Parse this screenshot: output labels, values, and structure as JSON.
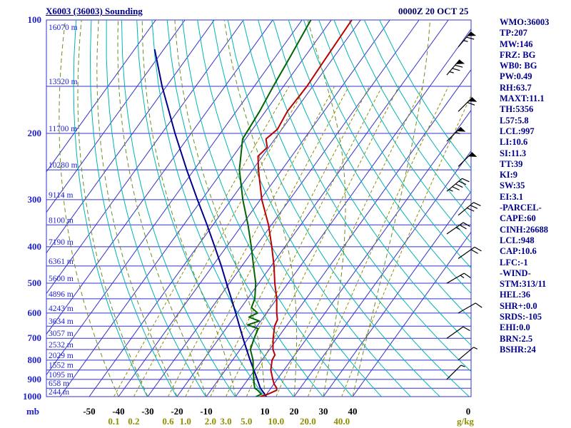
{
  "header": {
    "title": "X6003 (36003) Sounding",
    "timestamp": "0000Z 20 OCT 25"
  },
  "stats_panel": {
    "lines": [
      "WMO:36003",
      "TP:207",
      "MW:146",
      "FRZ: BG",
      "WB0: BG",
      "PW:0.49",
      "RH:63.7",
      "MAXT:11.1",
      "TH:5356",
      "L57:5.8",
      "LCL:997",
      "LI:10.6",
      "SI:11.3",
      "TT:39",
      "KI:9",
      "SW:35",
      "EI:3.1",
      "-PARCEL-",
      "CAPE:60",
      "CINH:26688",
      "LCL:948",
      "CAP:10.6",
      "LFC:-1",
      "-WIND-",
      "STM:313/11",
      "HEL:36",
      "SHR+:0.0",
      "SRDS:-105",
      "EHI:0.0",
      "BRN:2.5",
      "BSHR:24"
    ]
  },
  "colors": {
    "grid_blue": "#3333cc",
    "dry_adiabat_cyan": "#00b4b4",
    "mixing_olive": "#8f8f00",
    "moist_olive_green": "#6b8e23",
    "temperature_red": "#bb0000",
    "dewpoint_green": "#006400",
    "parcel_navy": "#00008b",
    "axis_text_blue": "#2222cc",
    "text_navy": "#00008b",
    "barb_black": "#000000"
  },
  "chart_data": {
    "type": "skewt_log_p",
    "title": "X6003 (36003) Sounding",
    "valid_time": "0000Z 20 OCT 25",
    "pressure_axis": {
      "unit_label": "mb",
      "range_mb": [
        100,
        1000
      ],
      "tick_labels_mb": [
        100,
        200,
        300,
        400,
        500,
        600,
        700,
        800,
        900,
        1000
      ],
      "line_step_mb": 50
    },
    "temp_axis": {
      "labels_c": [
        -50,
        -40,
        -30,
        -20,
        -10,
        10,
        20,
        30,
        40
      ],
      "extra_right_label": "0",
      "isotherm_range_c": [
        -120,
        40
      ],
      "isotherm_step_c": 10
    },
    "mixing_ratio_axis": {
      "unit_label": "g/kg",
      "values_gkg": [
        0.1,
        0.2,
        0.6,
        1.0,
        2.0,
        3.0,
        5.0,
        10.0,
        20.0,
        40.0
      ]
    },
    "height_labels": [
      {
        "p_mb": 100,
        "label": "16070 m"
      },
      {
        "p_mb": 150,
        "label": "13520 m"
      },
      {
        "p_mb": 200,
        "label": "11700 m"
      },
      {
        "p_mb": 250,
        "label": "10280 m"
      },
      {
        "p_mb": 300,
        "label": "9114 m"
      },
      {
        "p_mb": 350,
        "label": "8100 m"
      },
      {
        "p_mb": 400,
        "label": "7190 m"
      },
      {
        "p_mb": 450,
        "label": "6361 m"
      },
      {
        "p_mb": 500,
        "label": "5600 m"
      },
      {
        "p_mb": 550,
        "label": "4896 m"
      },
      {
        "p_mb": 600,
        "label": "4243 m"
      },
      {
        "p_mb": 650,
        "label": "3634 m"
      },
      {
        "p_mb": 700,
        "label": "3057 m"
      },
      {
        "p_mb": 750,
        "label": "2532 m"
      },
      {
        "p_mb": 800,
        "label": "2029 m"
      },
      {
        "p_mb": 850,
        "label": "1552 m"
      },
      {
        "p_mb": 900,
        "label": "1095 m"
      },
      {
        "p_mb": 950,
        "label": "658 m"
      },
      {
        "p_mb": 1000,
        "label": "244 m"
      }
    ],
    "grid": {
      "dry_adiabat_theta_k": {
        "min": 243,
        "max": 443,
        "step": 10
      },
      "moist_adiabat_start_c": {
        "min": -40,
        "max": 40,
        "step": 10
      }
    },
    "temperature_trace_p_c": [
      [
        1000,
        8.5
      ],
      [
        985,
        10.5
      ],
      [
        962,
        12.5
      ],
      [
        950,
        12.0
      ],
      [
        925,
        10.0
      ],
      [
        900,
        8.5
      ],
      [
        850,
        5.5
      ],
      [
        800,
        3.5
      ],
      [
        775,
        3.2
      ],
      [
        750,
        1.2
      ],
      [
        700,
        -1.5
      ],
      [
        650,
        -4.0
      ],
      [
        625,
        -4.6
      ],
      [
        600,
        -6.5
      ],
      [
        550,
        -10.0
      ],
      [
        500,
        -14.5
      ],
      [
        450,
        -19.0
      ],
      [
        400,
        -24.5
      ],
      [
        350,
        -31.0
      ],
      [
        300,
        -39.5
      ],
      [
        250,
        -48.0
      ],
      [
        230,
        -51.5
      ],
      [
        218,
        -50.5
      ],
      [
        207,
        -53.0
      ],
      [
        195,
        -51.5
      ],
      [
        175,
        -52.5
      ],
      [
        150,
        -52.0
      ],
      [
        125,
        -52.5
      ],
      [
        100,
        -53.0
      ]
    ],
    "dewpoint_trace_p_c": [
      [
        1000,
        7.0
      ],
      [
        985,
        8.2
      ],
      [
        962,
        6.0
      ],
      [
        950,
        4.5
      ],
      [
        925,
        3.2
      ],
      [
        900,
        2.0
      ],
      [
        850,
        -0.5
      ],
      [
        800,
        -3.0
      ],
      [
        750,
        -6.5
      ],
      [
        700,
        -8.0
      ],
      [
        660,
        -9.0
      ],
      [
        645,
        -13.5
      ],
      [
        630,
        -10.5
      ],
      [
        615,
        -15.0
      ],
      [
        600,
        -13.0
      ],
      [
        580,
        -16.5
      ],
      [
        550,
        -17.5
      ],
      [
        500,
        -21.0
      ],
      [
        450,
        -26.0
      ],
      [
        400,
        -31.5
      ],
      [
        350,
        -38.0
      ],
      [
        300,
        -46.0
      ],
      [
        250,
        -54.5
      ],
      [
        207,
        -61.0
      ],
      [
        175,
        -62.0
      ],
      [
        150,
        -63.5
      ],
      [
        125,
        -65.0
      ],
      [
        100,
        -67.0
      ]
    ],
    "parcel_trace_p_c": [
      [
        1000,
        10.5
      ],
      [
        948,
        6.3
      ],
      [
        900,
        3.2
      ],
      [
        850,
        -0.3
      ],
      [
        800,
        -4.0
      ],
      [
        750,
        -7.8
      ],
      [
        700,
        -11.8
      ],
      [
        650,
        -16.0
      ],
      [
        600,
        -20.5
      ],
      [
        550,
        -25.5
      ],
      [
        500,
        -31.0
      ],
      [
        450,
        -37.0
      ],
      [
        400,
        -44.0
      ],
      [
        350,
        -52.0
      ],
      [
        300,
        -61.5
      ],
      [
        250,
        -72.5
      ],
      [
        200,
        -85.5
      ],
      [
        150,
        -101.5
      ],
      [
        120,
        -113.0
      ]
    ],
    "wind_barbs": [
      {
        "p_mb": 118,
        "speed_kt": 65,
        "dir_deg": 40
      },
      {
        "p_mb": 140,
        "speed_kt": 75,
        "dir_deg": 40
      },
      {
        "p_mb": 175,
        "speed_kt": 60,
        "dir_deg": 45
      },
      {
        "p_mb": 210,
        "speed_kt": 55,
        "dir_deg": 45
      },
      {
        "p_mb": 245,
        "speed_kt": 50,
        "dir_deg": 45
      },
      {
        "p_mb": 285,
        "speed_kt": 45,
        "dir_deg": 50
      },
      {
        "p_mb": 330,
        "speed_kt": 30,
        "dir_deg": 50
      },
      {
        "p_mb": 370,
        "speed_kt": 25,
        "dir_deg": 55
      },
      {
        "p_mb": 430,
        "speed_kt": 20,
        "dir_deg": 55
      },
      {
        "p_mb": 500,
        "speed_kt": 15,
        "dir_deg": 60
      },
      {
        "p_mb": 600,
        "speed_kt": 10,
        "dir_deg": 60
      },
      {
        "p_mb": 700,
        "speed_kt": 10,
        "dir_deg": 55
      },
      {
        "p_mb": 800,
        "speed_kt": 5,
        "dir_deg": 50
      },
      {
        "p_mb": 900,
        "speed_kt": 5,
        "dir_deg": 45
      }
    ]
  }
}
